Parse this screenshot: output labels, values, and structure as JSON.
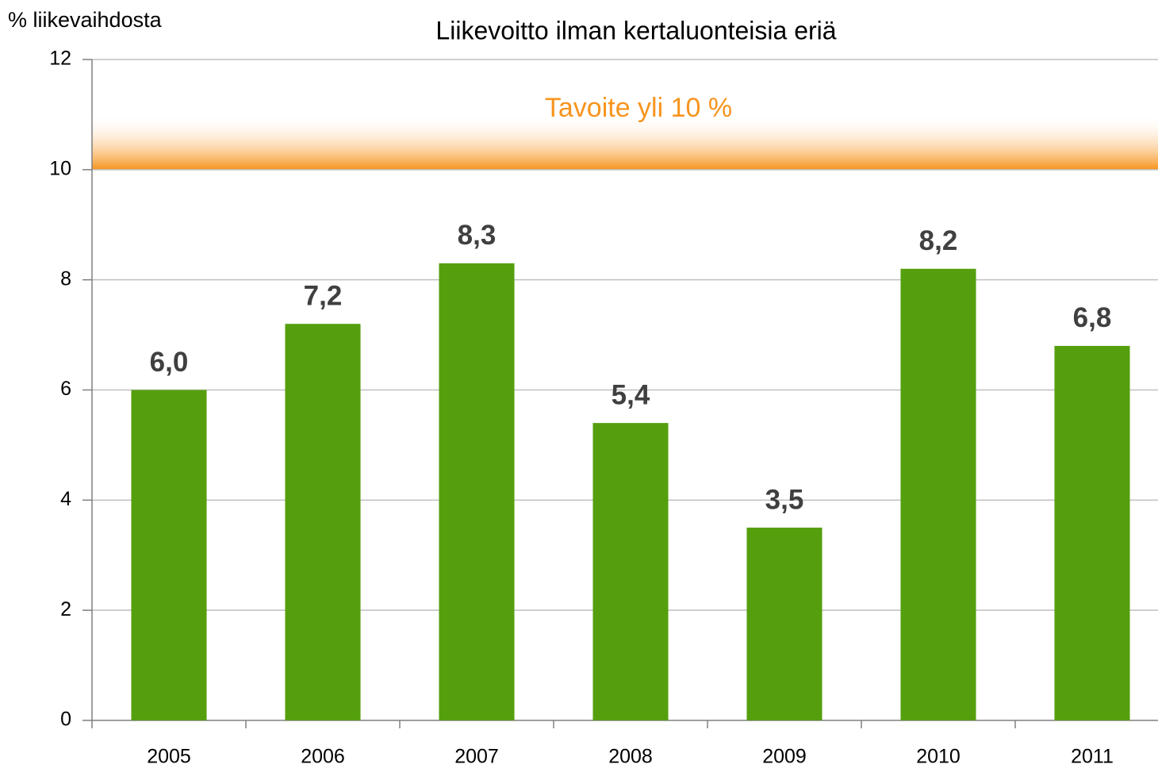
{
  "chart_data": {
    "type": "bar",
    "title": "Liikevoitto ilman kertaluonteisia eriä",
    "y_label": "% liikevaihdosta",
    "annotation": "Tavoite yli 10 %",
    "target": 10,
    "target_color": "#f7941d",
    "categories": [
      "2005",
      "2006",
      "2007",
      "2008",
      "2009",
      "2010",
      "2011"
    ],
    "values": [
      6.0,
      7.2,
      8.3,
      5.4,
      3.5,
      8.2,
      6.8
    ],
    "value_labels": [
      "6,0",
      "7,2",
      "8,3",
      "5,4",
      "3,5",
      "8,2",
      "6,8"
    ],
    "color": "#559f0e",
    "ylim": [
      0,
      12
    ],
    "yticks": [
      0,
      2,
      4,
      6,
      8,
      10,
      12
    ],
    "grid": true
  }
}
